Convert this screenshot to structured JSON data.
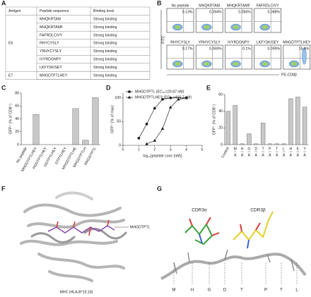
{
  "panel_labels": [
    "A",
    "B",
    "C",
    "D",
    "E",
    "F",
    "G"
  ],
  "table": {
    "headers": [
      "Antigen",
      "Peptide sequence",
      "Binding level"
    ],
    "groups": [
      {
        "antigen": "E6",
        "rows": [
          [
            "MHQKRTAM",
            "Strong binding"
          ],
          [
            "MHQKRTAMF",
            "Strong binding"
          ],
          [
            "FAFRDLCIVY",
            "Strong binding"
          ],
          [
            "RHYCYSLY",
            "Strong binding"
          ],
          [
            "YRHYCYSLY",
            "Strong binding"
          ],
          [
            "IVYRDGNPY",
            "Strong binding"
          ],
          [
            "LKFYSKISEY",
            "Strong binding"
          ]
        ]
      },
      {
        "antigen": "E7",
        "rows": [
          [
            "MHGDTPTLHEY",
            "Strong binding"
          ]
        ]
      }
    ]
  },
  "flow": {
    "y_axis": "FITC",
    "x_axis": "PE-CD8β",
    "panels": [
      {
        "label": "No peptide",
        "percent": "0.13%"
      },
      {
        "label": "MHQKRTAM",
        "percent": "0.094%"
      },
      {
        "label": "MHQKRTAMF",
        "percent": "0.056%"
      },
      {
        "label": "FAFRDLCIVY",
        "percent": "0.088%"
      },
      {
        "label": "RHYCYSLY",
        "percent": "0.17%"
      },
      {
        "label": "YRHYCYSLY",
        "percent": "0.069%"
      },
      {
        "label": "IVYRDGNPY",
        "percent": "0.1%"
      },
      {
        "label": "LKFYSKISEY",
        "percent": "0.099%"
      },
      {
        "label": "MHGDTPTLHEY",
        "percent": "15.4%"
      }
    ]
  },
  "chart_data": [
    {
      "type": "bar",
      "y_label": "GFP⁺ (% of CD8⁺)",
      "categories": [
        "No peptide",
        "MHGDTPTLHEY",
        "HGDTPTLHEY",
        "GDTPTLHEY",
        "DTPTLHEY",
        "MHGDTPTLHE",
        "MHGDTPTLH",
        "MHGDTPTL"
      ],
      "values": [
        0,
        47,
        0,
        0,
        0,
        56,
        7,
        73
      ],
      "color": "#c8c8c8",
      "ylim": [
        0,
        80
      ],
      "yticks": [
        0,
        20,
        40,
        60,
        80
      ]
    },
    {
      "type": "line",
      "x_label": "log₁₀[peptide conc (nM)]",
      "y_label": "GFP⁺ (% of max)",
      "xlim": [
        0,
        5
      ],
      "xticks": [
        0,
        1,
        2,
        3,
        4,
        5
      ],
      "ylim": [
        0,
        110
      ],
      "yticks": [
        0,
        50,
        100
      ],
      "series": [
        {
          "name": "MHGDTPTL (EC₅₀=29.87 nM)",
          "marker": "circle",
          "color": "#222",
          "x": [
            1,
            1.5,
            2,
            2.5,
            3,
            4
          ],
          "values": [
            15,
            45,
            78,
            97,
            100,
            100
          ]
        },
        {
          "name": "MHGDTPTLHEY (EC₅₀=466.7 nM)",
          "marker": "triangle",
          "color": "#222",
          "x": [
            1.5,
            2,
            2.5,
            3,
            3.5,
            4
          ],
          "values": [
            3,
            10,
            35,
            80,
            97,
            100
          ]
        }
      ]
    },
    {
      "type": "bar",
      "y_label": "GFP⁺ (% of CD8⁺)",
      "categories": [
        "Control",
        "M",
        "H",
        "G",
        "D",
        "T",
        "P",
        "T",
        "L",
        "H",
        "E",
        "Y"
      ],
      "substitutions": [
        null,
        "A",
        "A",
        "A",
        "A",
        "A",
        "A",
        "A",
        "A",
        "A",
        "A",
        "A"
      ],
      "values": [
        40,
        47,
        1,
        13,
        1,
        26,
        1,
        1,
        1,
        55,
        57,
        45
      ],
      "color": "#c8c8c8",
      "ylim": [
        0,
        60
      ],
      "yticks": [
        0,
        20,
        40,
        60
      ]
    }
  ],
  "structure_f": {
    "peptide_label": "MHGDTPTL",
    "mhc_label": "MHC (HLA-B*15:18)"
  },
  "structure_g": {
    "loops": [
      "CDR3α",
      "CDR3β"
    ],
    "residues": [
      "M",
      "H",
      "G",
      "D",
      "T",
      "P",
      "T",
      "L"
    ]
  }
}
